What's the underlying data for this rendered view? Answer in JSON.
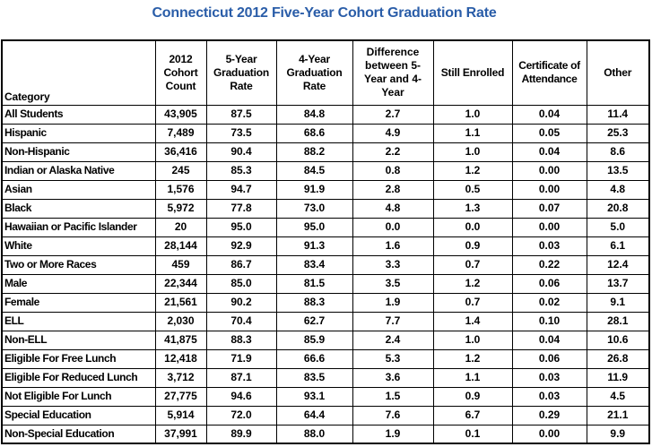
{
  "colors": {
    "title": "#2A5DA8",
    "text": "#000000",
    "border": "#000000",
    "background": "#FFFFFF"
  },
  "chart_data": {
    "type": "table",
    "title": "Connecticut 2012 Five-Year Cohort Graduation Rate",
    "columns": [
      "Category",
      "2012 Cohort Count",
      "5-Year Graduation Rate",
      "4-Year Graduation Rate",
      "Difference between 5-Year and 4-Year",
      "Still Enrolled",
      "Certificate of Attendance",
      "Other"
    ],
    "rows": [
      [
        "All Students",
        "43,905",
        "87.5",
        "84.8",
        "2.7",
        "1.0",
        "0.04",
        "11.4"
      ],
      [
        "Hispanic",
        "7,489",
        "73.5",
        "68.6",
        "4.9",
        "1.1",
        "0.05",
        "25.3"
      ],
      [
        "Non-Hispanic",
        "36,416",
        "90.4",
        "88.2",
        "2.2",
        "1.0",
        "0.04",
        "8.6"
      ],
      [
        "Indian or Alaska Native",
        "245",
        "85.3",
        "84.5",
        "0.8",
        "1.2",
        "0.00",
        "13.5"
      ],
      [
        "Asian",
        "1,576",
        "94.7",
        "91.9",
        "2.8",
        "0.5",
        "0.00",
        "4.8"
      ],
      [
        "Black",
        "5,972",
        "77.8",
        "73.0",
        "4.8",
        "1.3",
        "0.07",
        "20.8"
      ],
      [
        "Hawaiian or Pacific Islander",
        "20",
        "95.0",
        "95.0",
        "0.0",
        "0.0",
        "0.00",
        "5.0"
      ],
      [
        "White",
        "28,144",
        "92.9",
        "91.3",
        "1.6",
        "0.9",
        "0.03",
        "6.1"
      ],
      [
        "Two or More Races",
        "459",
        "86.7",
        "83.4",
        "3.3",
        "0.7",
        "0.22",
        "12.4"
      ],
      [
        "Male",
        "22,344",
        "85.0",
        "81.5",
        "3.5",
        "1.2",
        "0.06",
        "13.7"
      ],
      [
        "Female",
        "21,561",
        "90.2",
        "88.3",
        "1.9",
        "0.7",
        "0.02",
        "9.1"
      ],
      [
        "ELL",
        "2,030",
        "70.4",
        "62.7",
        "7.7",
        "1.4",
        "0.10",
        "28.1"
      ],
      [
        "Non-ELL",
        "41,875",
        "88.3",
        "85.9",
        "2.4",
        "1.0",
        "0.04",
        "10.6"
      ],
      [
        "Eligible For Free Lunch",
        "12,418",
        "71.9",
        "66.6",
        "5.3",
        "1.2",
        "0.06",
        "26.8"
      ],
      [
        "Eligible For Reduced Lunch",
        "3,712",
        "87.1",
        "83.5",
        "3.6",
        "1.1",
        "0.03",
        "11.9"
      ],
      [
        "Not Eligible For Lunch",
        "27,775",
        "94.6",
        "93.1",
        "1.5",
        "0.9",
        "0.03",
        "4.5"
      ],
      [
        "Special Education",
        "5,914",
        "72.0",
        "64.4",
        "7.6",
        "6.7",
        "0.29",
        "21.1"
      ],
      [
        "Non-Special Education",
        "37,991",
        "89.9",
        "88.0",
        "1.9",
        "0.1",
        "0.00",
        "9.9"
      ]
    ]
  }
}
